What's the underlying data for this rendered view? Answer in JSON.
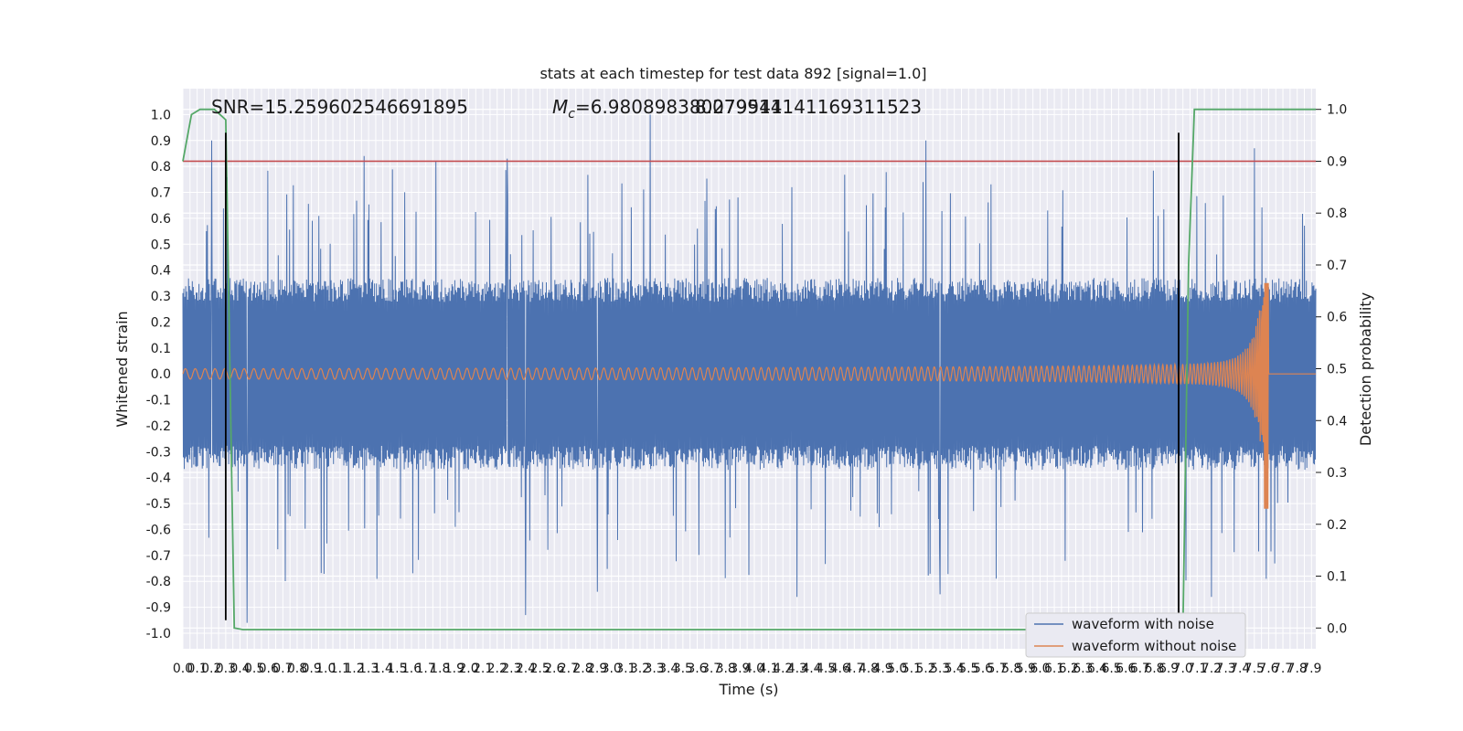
{
  "chart_data": {
    "type": "line",
    "title": "stats at each timestep for test data 892 [signal=1.0]",
    "xlabel": "Time (s)",
    "ylabel_left": "Whitened strain",
    "ylabel_right": "Detection probability",
    "xlim": [
      0.0,
      7.93
    ],
    "ylim_left": [
      -1.06,
      1.1
    ],
    "ylim_right": [
      -0.04,
      1.04
    ],
    "grid": true,
    "legend_position": "bottom-right",
    "x_tick_step": 0.05,
    "x_tick_labels": [
      "0.0",
      "0.1",
      "0.2",
      "0.3",
      "0.4",
      "0.5",
      "0.6",
      "0.7",
      "0.8",
      "0.9",
      "1.0",
      "1.1",
      "1.2",
      "1.3",
      "1.4",
      "1.5",
      "1.6",
      "1.7",
      "1.8",
      "1.9",
      "2.0",
      "2.1",
      "2.2",
      "2.3",
      "2.4",
      "2.5",
      "2.6",
      "2.7",
      "2.8",
      "2.9",
      "3.0",
      "3.1",
      "3.2",
      "3.3",
      "3.4",
      "3.5",
      "3.6",
      "3.7",
      "3.8",
      "3.9",
      "4.0",
      "4.1",
      "4.2",
      "4.3",
      "4.4",
      "4.5",
      "4.6",
      "4.7",
      "4.8",
      "4.9",
      "5.0",
      "5.1",
      "5.2",
      "5.3",
      "5.4",
      "5.5",
      "5.6",
      "5.7",
      "5.8",
      "5.9",
      "6.0",
      "6.1",
      "6.2",
      "6.3",
      "6.4",
      "6.5",
      "6.6",
      "6.7",
      "6.8",
      "6.9",
      "7.0",
      "7.1",
      "7.2",
      "7.3",
      "7.4",
      "7.5",
      "7.6",
      "7.7",
      "7.8",
      "7.9"
    ],
    "y_left_ticks": [
      -1.0,
      -0.9,
      -0.8,
      -0.7,
      -0.6,
      -0.5,
      -0.4,
      -0.3,
      -0.2,
      -0.1,
      0.0,
      0.1,
      0.2,
      0.3,
      0.4,
      0.5,
      0.6,
      0.7,
      0.8,
      0.9,
      1.0
    ],
    "y_left_tick_labels": [
      "-1.0",
      "-0.9",
      "-0.8",
      "-0.7",
      "-0.6",
      "-0.5",
      "-0.4",
      "-0.3",
      "-0.2",
      "-0.1",
      "0.0",
      "0.1",
      "0.2",
      "0.3",
      "0.4",
      "0.5",
      "0.6",
      "0.7",
      "0.8",
      "0.9",
      "1.0"
    ],
    "y_right_ticks": [
      0.0,
      0.1,
      0.2,
      0.3,
      0.4,
      0.5,
      0.6,
      0.7,
      0.8,
      0.9,
      1.0
    ],
    "y_right_tick_labels": [
      "0.0",
      "0.1",
      "0.2",
      "0.3",
      "0.4",
      "0.5",
      "0.6",
      "0.7",
      "0.8",
      "0.9",
      "1.0"
    ],
    "annotations": {
      "snr": "SNR=15.259602546691895",
      "mc_symbol": "M",
      "mc_subscript": "c",
      "mc_text": "=6.980898380279541",
      "overlap_text": "8.079914141169311523"
    },
    "series": [
      {
        "name": "waveform with noise",
        "color": "#4c72b0",
        "kind": "noise",
        "envelope_abs": 0.37,
        "peak_points": [
          [
            0.2,
            0.9
          ],
          [
            1.27,
            0.84
          ],
          [
            1.77,
            0.82
          ],
          [
            2.27,
            0.83
          ],
          [
            3.27,
            1.0
          ],
          [
            5.2,
            0.9
          ],
          [
            7.5,
            0.87
          ],
          [
            0.45,
            -0.96
          ],
          [
            2.4,
            -0.93
          ],
          [
            2.9,
            -0.84
          ],
          [
            4.3,
            -0.86
          ],
          [
            5.3,
            -0.85
          ],
          [
            7.2,
            -0.86
          ]
        ]
      },
      {
        "name": "waveform without noise",
        "color": "#dd8452",
        "kind": "chirp",
        "t_merge": 7.6,
        "amp_start": 0.02,
        "amp_peak": 0.35,
        "amp_peak_neg": -0.52
      },
      {
        "color": "#55a868",
        "axis": "right",
        "kind": "probability",
        "x": [
          0.0,
          0.06,
          0.12,
          0.22,
          0.3,
          0.36,
          0.42,
          6.95,
          7.0,
          7.04,
          7.08,
          7.93
        ],
        "y": [
          0.9,
          0.99,
          1.0,
          1.0,
          0.98,
          0.0,
          -0.003,
          -0.003,
          0.0,
          0.7,
          1.0,
          1.0
        ]
      }
    ],
    "threshold_line": {
      "axis": "right",
      "y": 0.9,
      "color": "#c44e52"
    },
    "vertical_markers": [
      {
        "x": 0.3,
        "y_top": 0.93,
        "y_bottom": -0.95
      },
      {
        "x": 6.97,
        "y_top": 0.93,
        "y_bottom": -0.95
      }
    ]
  }
}
